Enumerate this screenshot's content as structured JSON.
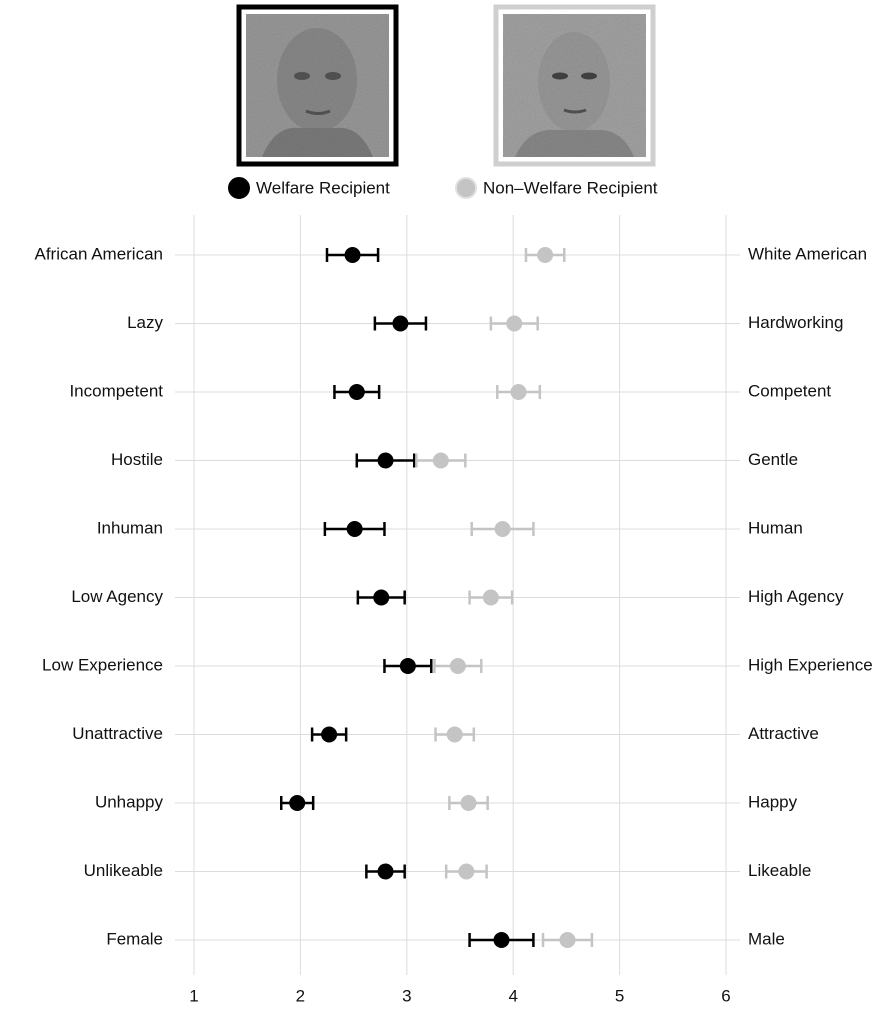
{
  "chart_data": {
    "type": "dot-error",
    "categories": [
      "African American",
      "Lazy",
      "Incompetent",
      "Hostile",
      "Inhuman",
      "Low Agency",
      "Low Experience",
      "Unattractive",
      "Unhappy",
      "Unlikeable",
      "Female"
    ],
    "right_labels": [
      "White American",
      "Hardworking",
      "Competent",
      "Gentle",
      "Human",
      "High Agency",
      "High Experience",
      "Attractive",
      "Happy",
      "Likeable",
      "Male"
    ],
    "series": [
      {
        "name": "Welfare Recipient",
        "color": "#000000",
        "values": [
          2.49,
          2.94,
          2.53,
          2.8,
          2.51,
          2.76,
          3.01,
          2.27,
          1.97,
          2.8,
          3.89
        ],
        "errors": [
          0.24,
          0.24,
          0.21,
          0.27,
          0.28,
          0.22,
          0.22,
          0.16,
          0.15,
          0.18,
          0.3
        ]
      },
      {
        "name": "Non–Welfare Recipient",
        "color": "#c4c4c4",
        "values": [
          4.3,
          4.01,
          4.05,
          3.32,
          3.9,
          3.79,
          3.48,
          3.45,
          3.58,
          3.56,
          4.51
        ],
        "errors": [
          0.18,
          0.22,
          0.2,
          0.23,
          0.29,
          0.2,
          0.22,
          0.18,
          0.18,
          0.19,
          0.23
        ]
      }
    ],
    "xlim": [
      1,
      6
    ],
    "xticks": [
      1,
      2,
      3,
      4,
      5,
      6
    ],
    "grid": true
  }
}
